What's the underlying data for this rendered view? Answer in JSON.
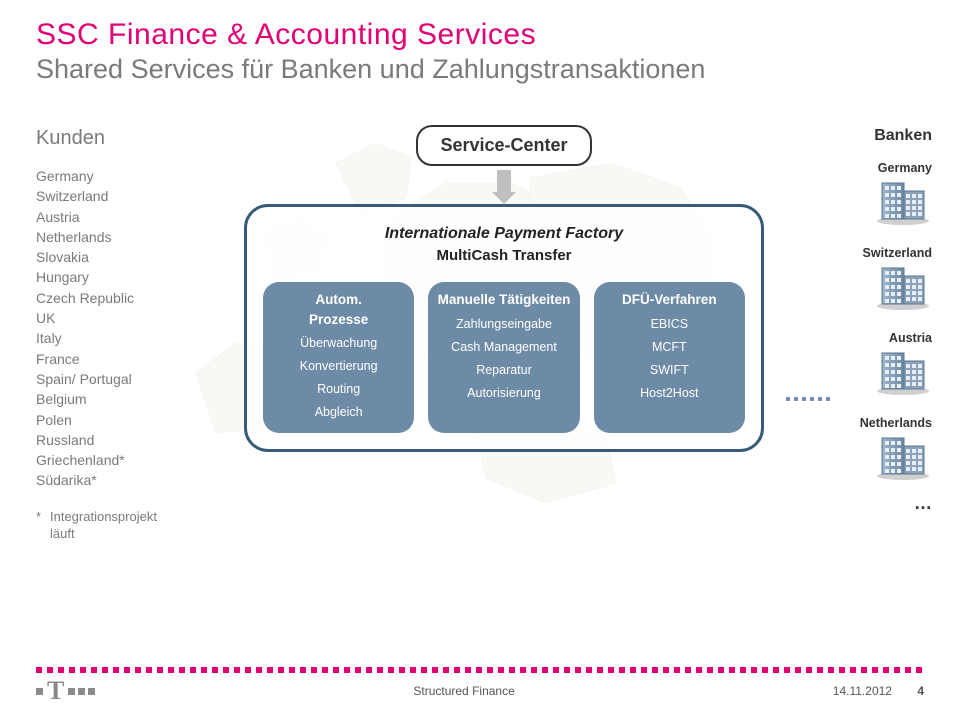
{
  "colors": {
    "magenta": "#e20074",
    "gray_text": "#7a7a7a",
    "box_border": "#3a5a7a",
    "pill_bg": "#6d8aa6",
    "map": "#e8e4d9"
  },
  "title": "SSC Finance & Accounting Services",
  "subtitle": "Shared Services für Banken und Zahlungstransaktionen",
  "kunden": {
    "heading": "Kunden",
    "countries": [
      "Germany",
      "Switzerland",
      "Austria",
      "Netherlands",
      "Slovakia",
      "Hungary",
      "Czech Republic",
      "UK",
      "Italy",
      "France",
      "Spain/ Portugal",
      "Belgium",
      "Polen",
      "Russland",
      "Griechenland*",
      "Südarika*"
    ],
    "footnote_marker": "*",
    "footnote_line1": "Integrationsprojekt",
    "footnote_line2": "läuft"
  },
  "service_center": {
    "label": "Service-Center",
    "ipf_title": "Internationale Payment Factory",
    "ipf_sub": "MultiCash Transfer",
    "col1": {
      "head1": "Autom.",
      "head2": "Prozesse",
      "items": [
        "Überwachung",
        "Konvertierung",
        "Routing",
        "Abgleich"
      ]
    },
    "col2": {
      "head": "Manuelle Tätigkeiten",
      "items": [
        "Zahlungseingabe",
        "Cash Management",
        "Reparatur",
        "Autorisierung"
      ]
    },
    "col3": {
      "head": "DFÜ-Verfahren",
      "items": [
        "EBICS",
        "MCFT",
        "SWIFT",
        "Host2Host"
      ]
    }
  },
  "banken": {
    "heading": "Banken",
    "list": [
      "Germany",
      "Switzerland",
      "Austria",
      "Netherlands"
    ],
    "ellipsis": "…"
  },
  "footer": {
    "center": "Structured Finance",
    "date": "14.11.2012",
    "page": "4"
  }
}
